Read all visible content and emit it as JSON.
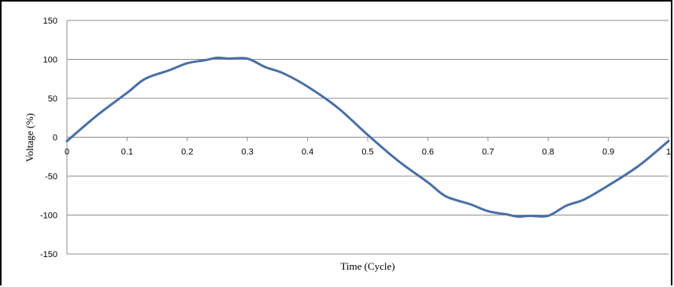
{
  "chart_data": {
    "type": "line",
    "title": "",
    "xlabel": "Time (Cycle)",
    "ylabel": "Voltage (%)",
    "xlim": [
      0,
      1
    ],
    "ylim": [
      -150,
      150
    ],
    "x_ticks": [
      "0",
      "0.1",
      "0.2",
      "0.3",
      "0.4",
      "0.5",
      "0.6",
      "0.7",
      "0.8",
      "0.9",
      "1"
    ],
    "y_ticks": [
      "150",
      "100",
      "50",
      "0",
      "-50",
      "-100",
      "-150"
    ],
    "grid": "horizontal",
    "legend": "none",
    "series": [
      {
        "color": "#4a6fa5",
        "x": [
          0,
          0.05,
          0.1,
          0.13,
          0.17,
          0.2,
          0.23,
          0.25,
          0.27,
          0.3,
          0.33,
          0.36,
          0.4,
          0.45,
          0.5,
          0.55,
          0.6,
          0.63,
          0.67,
          0.7,
          0.73,
          0.75,
          0.77,
          0.8,
          0.83,
          0.86,
          0.9,
          0.95,
          1.0
        ],
        "y": [
          -5,
          28,
          57,
          75,
          86,
          95,
          99,
          102,
          101,
          101,
          90,
          82,
          65,
          38,
          3,
          -30,
          -58,
          -76,
          -86,
          -95,
          -99,
          -102,
          -101,
          -101,
          -88,
          -80,
          -62,
          -37,
          -5
        ]
      }
    ]
  }
}
